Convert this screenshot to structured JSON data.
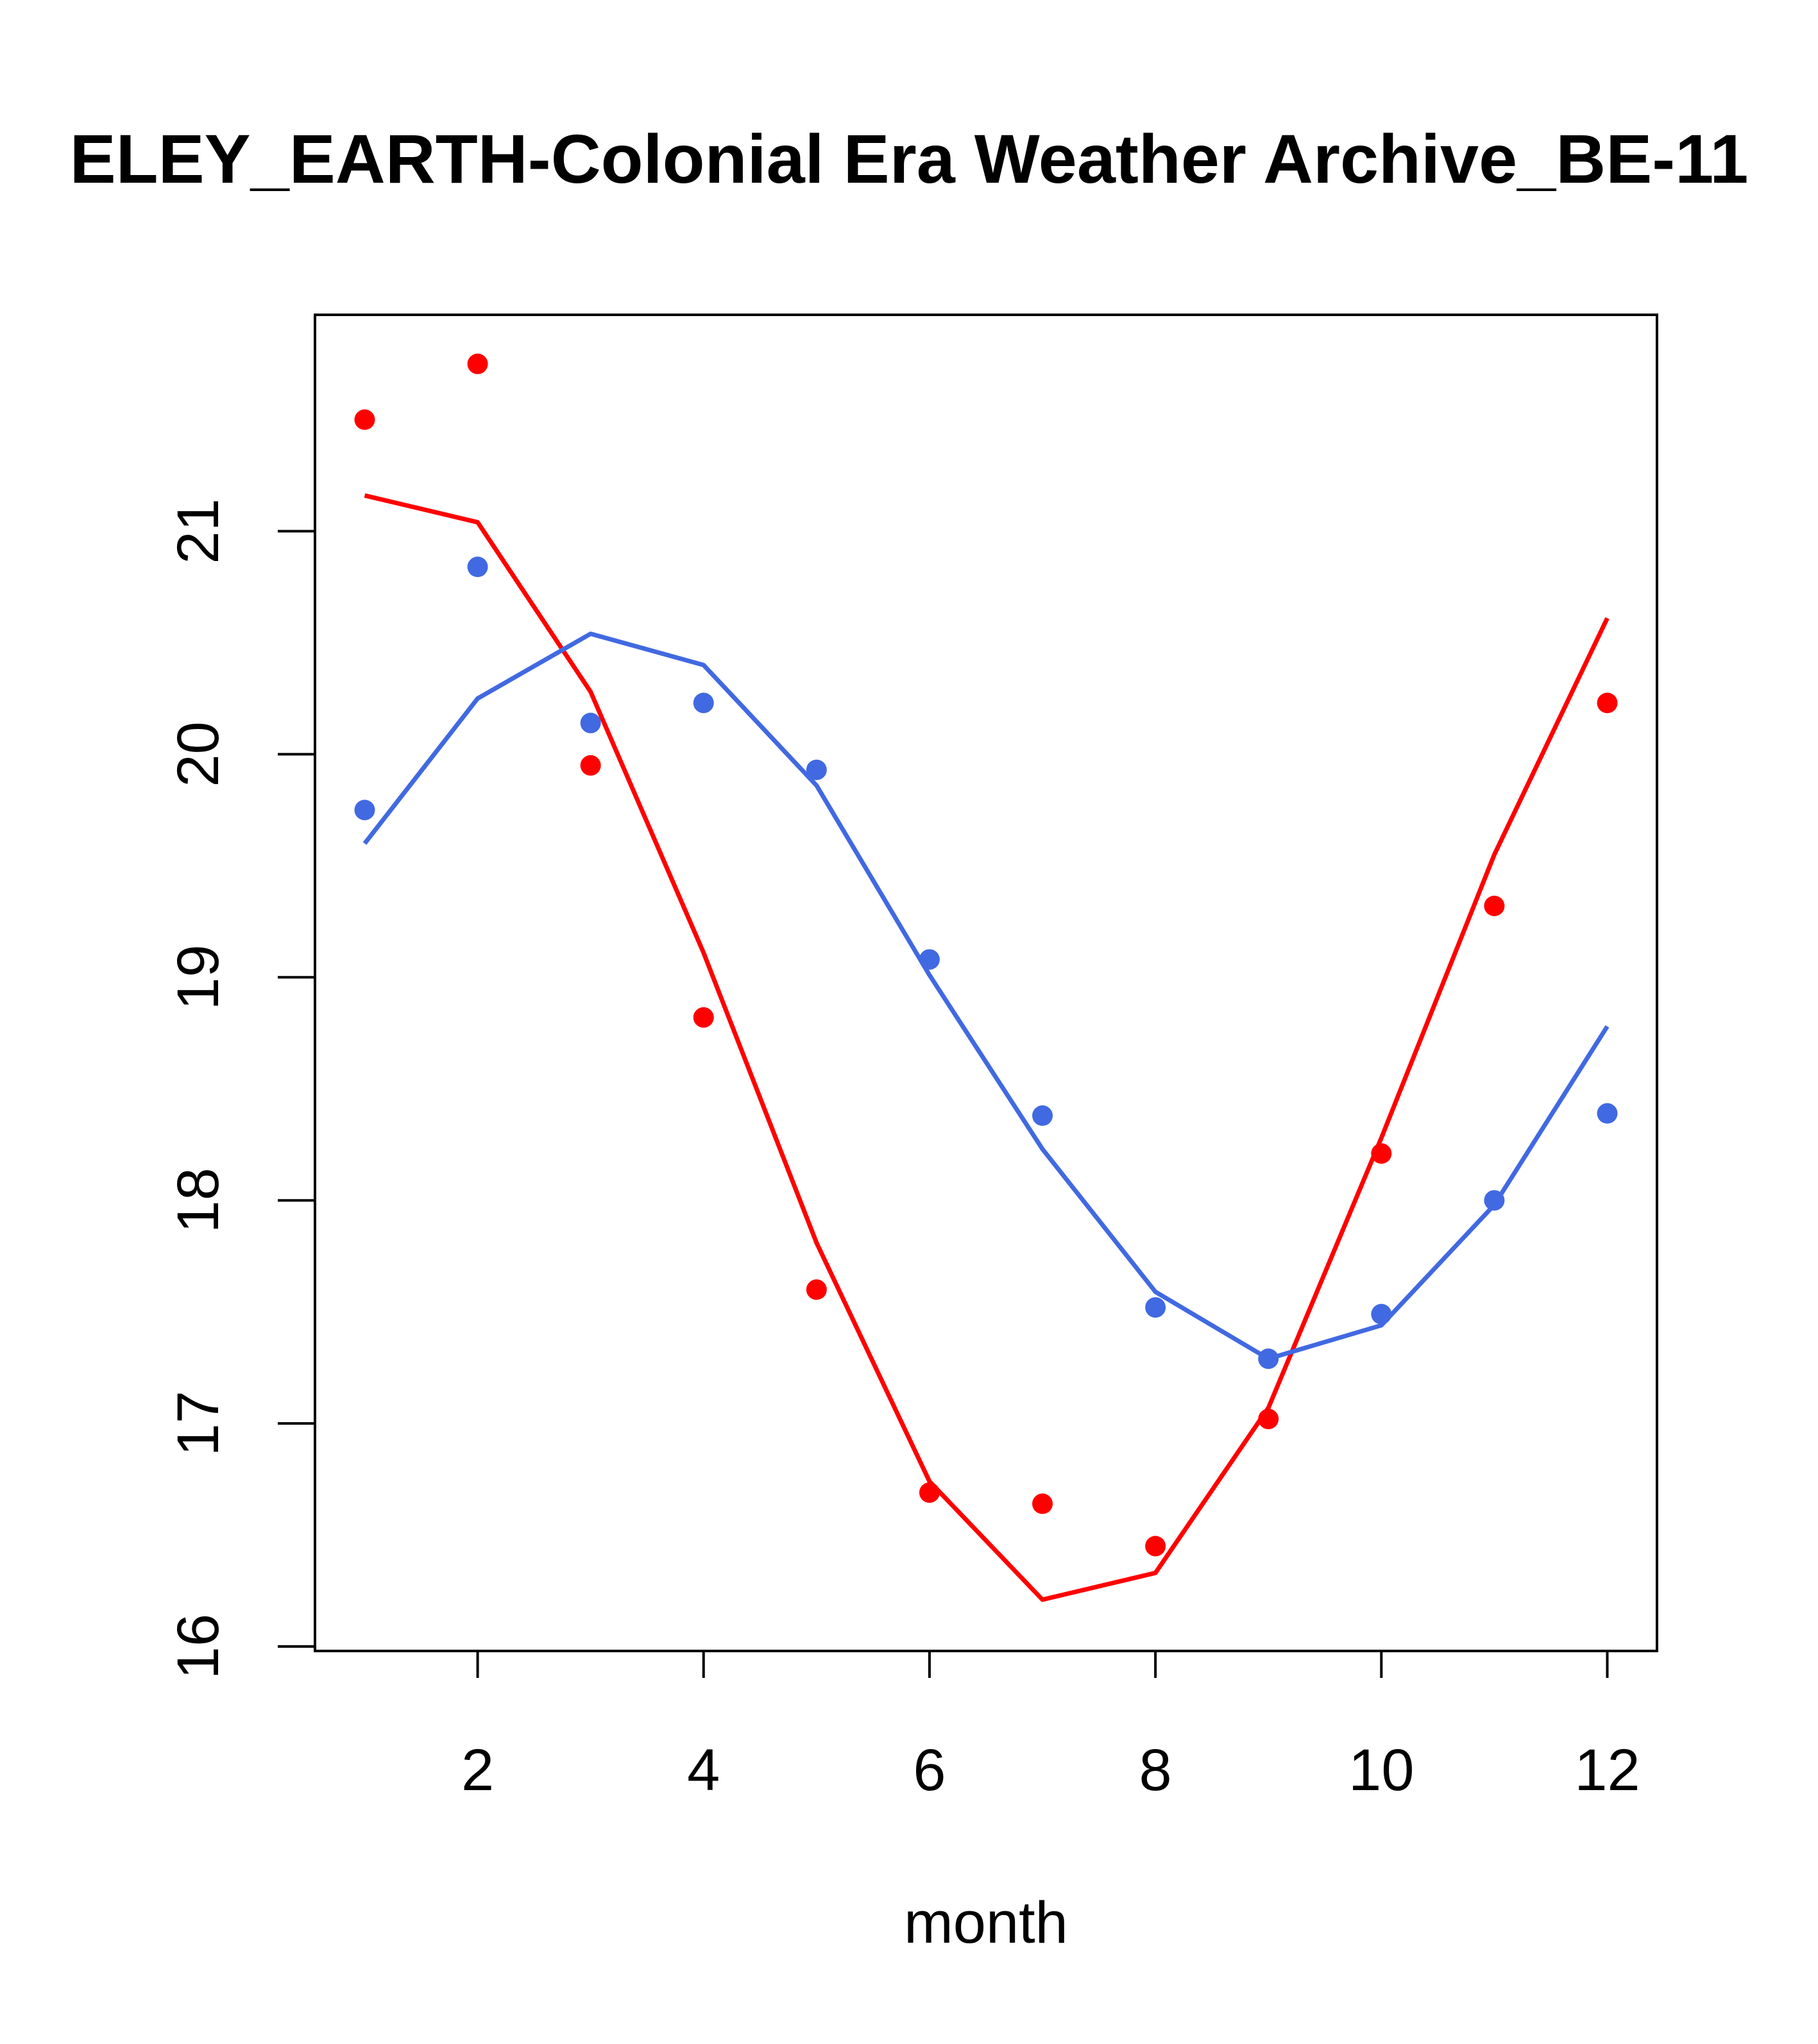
{
  "chart_data": {
    "type": "line",
    "title": "ELEY_EARTH-Colonial Era Weather Archive_BE-11",
    "xlabel": "month",
    "ylabel": "",
    "xlim": [
      0.56,
      12.44
    ],
    "ylim": [
      15.98,
      21.97
    ],
    "x_ticks": [
      2,
      4,
      6,
      8,
      10,
      12
    ],
    "y_ticks": [
      16,
      17,
      18,
      19,
      20,
      21
    ],
    "x": [
      1,
      2,
      3,
      4,
      5,
      6,
      7,
      8,
      9,
      10,
      11,
      12
    ],
    "series": [
      {
        "color": "#ff0000",
        "points": [
          21.5,
          21.75,
          19.95,
          18.82,
          17.6,
          16.69,
          16.64,
          16.45,
          17.02,
          18.21,
          19.32,
          20.23
        ],
        "line": [
          21.16,
          21.04,
          20.28,
          19.11,
          17.81,
          16.74,
          16.21,
          16.33,
          17.07,
          18.28,
          19.55,
          20.61
        ]
      },
      {
        "color": "#4169e1",
        "points": [
          19.75,
          20.84,
          20.14,
          20.23,
          19.93,
          19.08,
          18.38,
          17.52,
          17.29,
          17.49,
          18.0,
          18.39
        ],
        "line": [
          19.6,
          20.25,
          20.54,
          20.4,
          19.86,
          19.01,
          18.23,
          17.59,
          17.29,
          17.44,
          17.98,
          18.78
        ]
      }
    ]
  }
}
